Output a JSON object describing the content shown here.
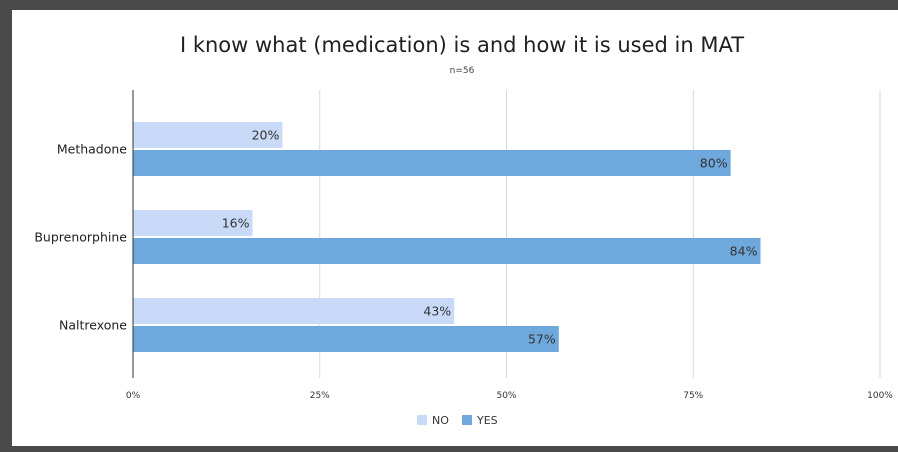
{
  "chart_data": {
    "type": "bar",
    "orientation": "horizontal",
    "title": "I know what (medication) is and how it is used in MAT",
    "subtitle": "n=56",
    "categories": [
      "Methadone",
      "Buprenorphine",
      "Naltrexone"
    ],
    "series": [
      {
        "name": "NO",
        "values": [
          20,
          16,
          43
        ],
        "labels": [
          "20%",
          "16%",
          "43%"
        ],
        "color": "#c9daf8"
      },
      {
        "name": "YES",
        "values": [
          80,
          84,
          57
        ],
        "labels": [
          "80%",
          "84%",
          "57%"
        ],
        "color": "#6fa8dc"
      }
    ],
    "xlim": [
      0,
      100
    ],
    "xticks": [
      0,
      25,
      50,
      75,
      100
    ],
    "xtick_labels": [
      "0%",
      "25%",
      "50%",
      "75%",
      "100%"
    ],
    "xlabel": "",
    "ylabel": "",
    "grid": true,
    "legend_position": "bottom"
  }
}
